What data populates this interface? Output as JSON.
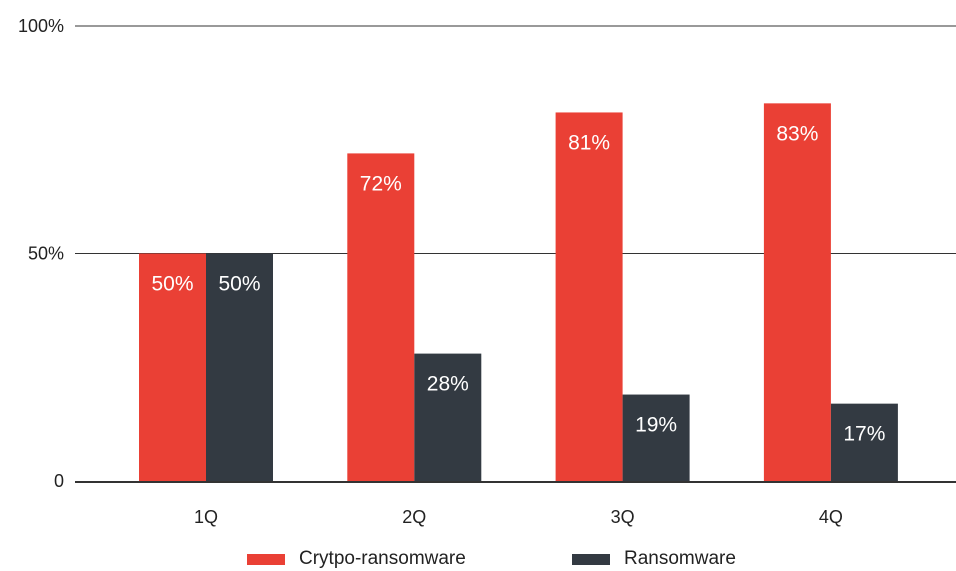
{
  "chart_data": {
    "type": "bar",
    "categories": [
      "1Q",
      "2Q",
      "3Q",
      "4Q"
    ],
    "series": [
      {
        "name": "Crytpo-ransomware",
        "values": [
          50,
          72,
          81,
          83
        ],
        "color": "#ea4035"
      },
      {
        "name": "Ransomware",
        "values": [
          50,
          28,
          19,
          17
        ],
        "color": "#333a42"
      }
    ],
    "ylim": [
      0,
      100
    ],
    "yticks": [
      {
        "value": 0,
        "label": "0"
      },
      {
        "value": 50,
        "label": "50%"
      },
      {
        "value": 100,
        "label": "100%"
      }
    ],
    "value_format": "%",
    "grid": true,
    "legend_position": "bottom"
  }
}
